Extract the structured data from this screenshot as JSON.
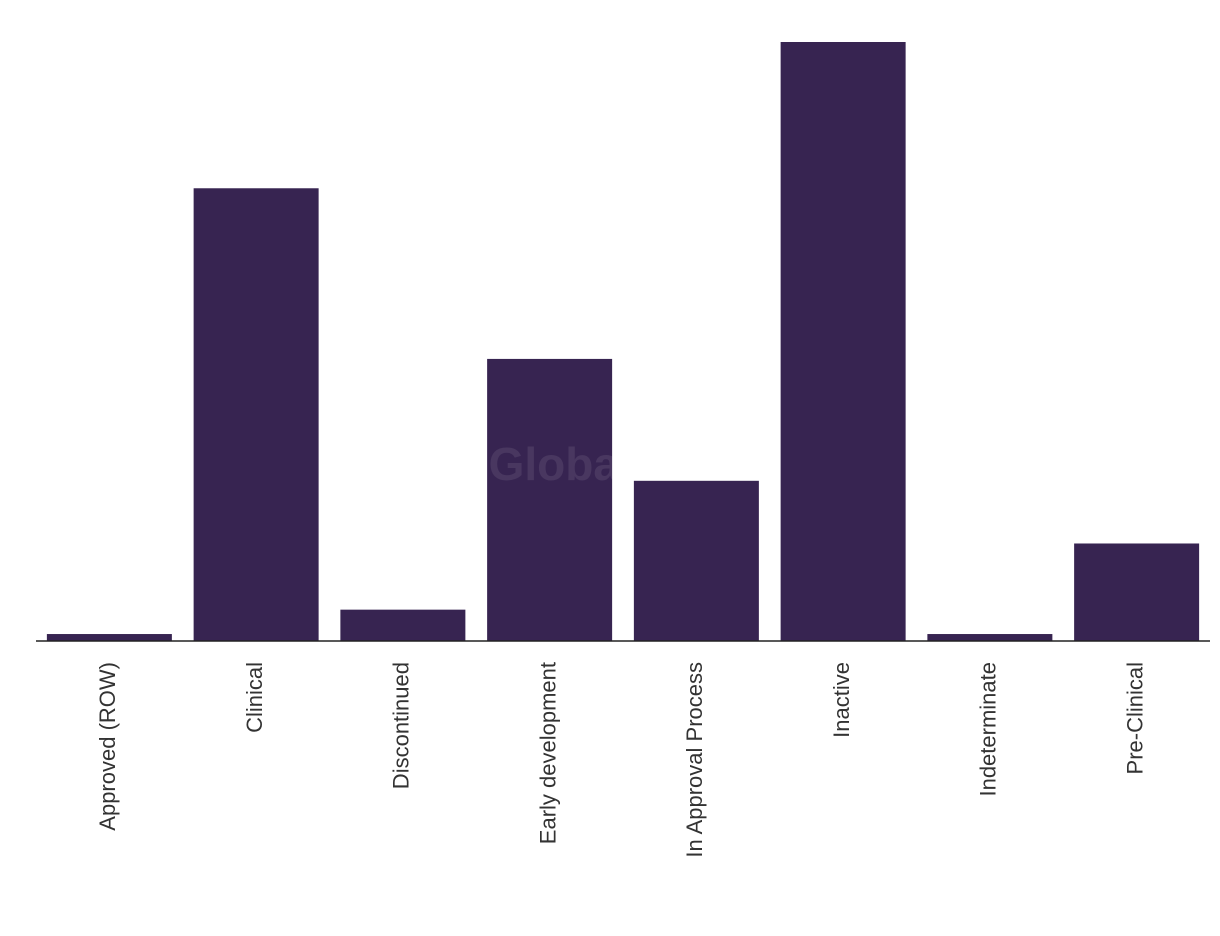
{
  "chart_data": {
    "type": "bar",
    "categories": [
      "Approved (ROW)",
      "Clinical",
      "Discontinued",
      "Early development",
      "In Approval Process",
      "Inactive",
      "Indeterminate",
      "Pre-Clinical"
    ],
    "values": [
      1,
      65,
      4.5,
      40.5,
      23,
      86,
      1,
      14
    ],
    "color": "#372451",
    "ylim": [
      0,
      86
    ],
    "watermark": "GlobalData"
  }
}
